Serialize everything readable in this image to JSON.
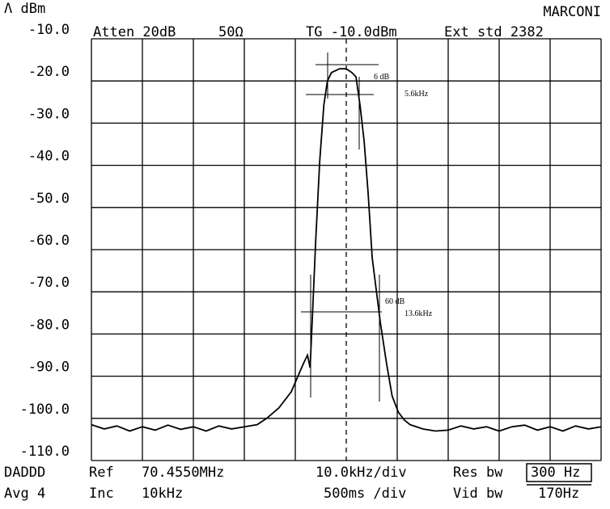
{
  "header": {
    "unit": "Λ dBm",
    "brand": "MARCONI",
    "atten": "Atten 20dB",
    "impedance": "50Ω",
    "tg": "TG -10.0dBm",
    "ext": "Ext std 2382"
  },
  "footer": {
    "mode": "DADDD",
    "ref_label": "Ref",
    "ref_value": "70.4550MHz",
    "span": "10.0kHz/div",
    "res_label": "Res bw",
    "res_value": "300 Hz",
    "avg": "Avg 4",
    "inc_label": "Inc",
    "inc_value": "10kHz",
    "sweep": "500ms /div",
    "vid_label": "Vid bw",
    "vid_value": "170Hz"
  },
  "chart_data": {
    "type": "line",
    "x": [
      -50,
      -47.5,
      -45,
      -42.5,
      -40,
      -37.5,
      -35,
      -32.5,
      -30,
      -27.5,
      -25,
      -22.5,
      -20,
      -17.5,
      -15.6,
      -13.2,
      -10.8,
      -8.4,
      -7.6,
      -7.1,
      -6.7,
      -6,
      -5.2,
      -4.4,
      -3.7,
      -2.9,
      -1.3,
      0,
      1.1,
      1.9,
      2.7,
      3.5,
      4.3,
      5.1,
      6.7,
      7.9,
      9,
      10.2,
      11.4,
      12.5,
      15,
      17.5,
      20,
      22.5,
      25,
      27.5,
      30,
      32.5,
      35,
      37.5,
      40,
      42.5,
      45,
      47.5,
      50
    ],
    "series": [
      {
        "color": "#000000",
        "values": [
          -101.5,
          -102.5,
          -101.8,
          -103,
          -102,
          -102.8,
          -101.6,
          -102.6,
          -102,
          -103,
          -101.8,
          -102.5,
          -102,
          -101.5,
          -100,
          -97.5,
          -93.7,
          -87,
          -85,
          -88,
          -77.4,
          -58,
          -39,
          -25.7,
          -20,
          -18,
          -17.1,
          -17.1,
          -18,
          -19,
          -25.7,
          -34.3,
          -46.8,
          -62,
          -77.4,
          -87,
          -94.7,
          -98.5,
          -100.4,
          -101.5,
          -102.5,
          -103,
          -102.8,
          -101.8,
          -102.5,
          -102,
          -103,
          -102,
          -101.6,
          -102.8,
          -102,
          -103,
          -101.8,
          -102.5,
          -102
        ]
      }
    ],
    "xlim": [
      -50,
      50
    ],
    "xticks": [
      -50,
      -40,
      -30,
      -20,
      -10,
      0,
      10,
      20,
      30,
      40,
      50
    ],
    "ylim": [
      -110,
      -10
    ],
    "yticks": [
      {
        "value": -10,
        "label": "-10.0"
      },
      {
        "value": -20,
        "label": "-20.0"
      },
      {
        "value": -30,
        "label": "-30.0"
      },
      {
        "value": -40,
        "label": "-40.0"
      },
      {
        "value": -50,
        "label": "-50.0"
      },
      {
        "value": -60,
        "label": "-60.0"
      },
      {
        "value": -70,
        "label": "-70.0"
      },
      {
        "value": -80,
        "label": "-80.0"
      },
      {
        "value": -90,
        "label": "-90.0"
      },
      {
        "value": -100,
        "label": "-100.0"
      },
      {
        "value": -110,
        "label": "-110.0"
      }
    ],
    "grid": true,
    "annotations": [
      "6 dB",
      "5.6kHz",
      "60 dB",
      "13.6kHz"
    ]
  }
}
